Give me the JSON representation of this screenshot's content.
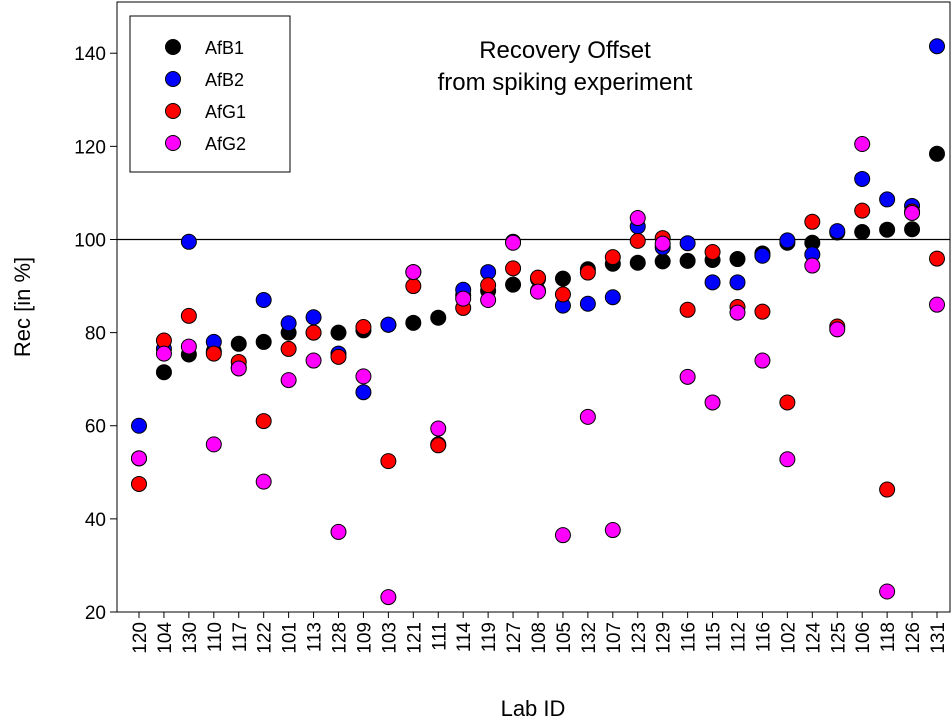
{
  "chart_data": {
    "type": "scatter",
    "title": "Recovery Offset",
    "subtitle": "from spiking experiment",
    "x_label": "Lab ID",
    "y_label": "Rec [in %]",
    "categories": [
      "120",
      "104",
      "130",
      "110",
      "117",
      "122",
      "101",
      "113",
      "128",
      "109",
      "103",
      "121",
      "111",
      "114",
      "119",
      "127",
      "108",
      "105",
      "132",
      "107",
      "123",
      "129",
      "116",
      "115",
      "112",
      "116",
      "102",
      "124",
      "125",
      "106",
      "118",
      "126",
      "131"
    ],
    "series": [
      {
        "name": "AfB1",
        "color": "#000000",
        "values": [
          53,
          71.5,
          75.3,
          76,
          77.6,
          78,
          80,
          80,
          80,
          80.5,
          81.7,
          82.1,
          83.2,
          88,
          89,
          90.3,
          91.5,
          91.6,
          93.6,
          94.8,
          95,
          95.3,
          95.4,
          95.6,
          95.8,
          97,
          99.3,
          99.3,
          101.5,
          101.6,
          102.1,
          102.2,
          118.4
        ]
      },
      {
        "name": "AfB2",
        "color": "#0000ff",
        "values": [
          60,
          76.5,
          99.5,
          78,
          72.5,
          87,
          82,
          83.3,
          75.5,
          67.2,
          81.7,
          93,
          56,
          89.2,
          93,
          99.5,
          89,
          85.8,
          86.2,
          87.6,
          102.8,
          98.3,
          99.2,
          90.8,
          90.8,
          96.5,
          99.8,
          96.8,
          101.8,
          113,
          108.6,
          107.2,
          141.5
        ]
      },
      {
        "name": "AfG1",
        "color": "#ff0000",
        "values": [
          47.5,
          78.3,
          83.6,
          75.5,
          73.7,
          61,
          76.5,
          80,
          74.8,
          81.2,
          52.4,
          90,
          55.8,
          85.3,
          90.2,
          93.8,
          91.8,
          88.2,
          92.9,
          96.2,
          99.7,
          100.3,
          84.9,
          97.3,
          85.5,
          84.5,
          65,
          103.8,
          81.3,
          106.2,
          46.3,
          106,
          95.9
        ]
      },
      {
        "name": "AfG2",
        "color": "#ff00ff",
        "values": [
          53,
          75.5,
          77,
          56,
          72.3,
          48,
          69.8,
          74,
          37.2,
          70.6,
          23.2,
          93,
          59.4,
          87.3,
          87,
          99.3,
          88.8,
          36.5,
          61.9,
          37.6,
          104.6,
          99.1,
          70.5,
          65,
          84.3,
          74,
          52.8,
          94.4,
          80.7,
          120.5,
          24.4,
          105.7,
          86
        ]
      }
    ],
    "ylim": [
      20,
      151
    ],
    "yticks": [
      20,
      40,
      60,
      80,
      100,
      120,
      140
    ],
    "reference_line": 100,
    "legend": "upper-left",
    "grid": false
  }
}
